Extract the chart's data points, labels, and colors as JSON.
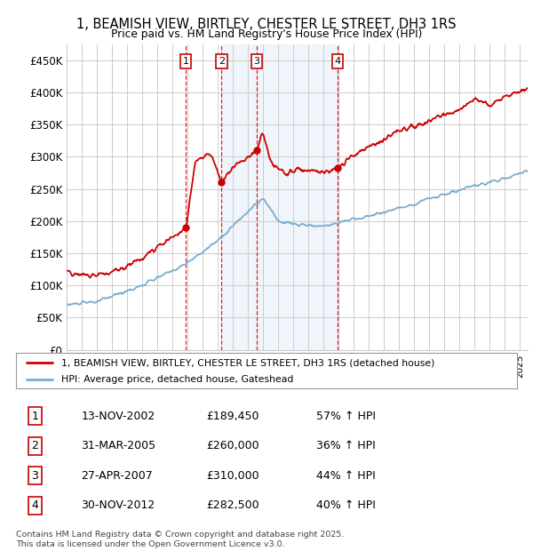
{
  "title": "1, BEAMISH VIEW, BIRTLEY, CHESTER LE STREET, DH3 1RS",
  "subtitle": "Price paid vs. HM Land Registry's House Price Index (HPI)",
  "ylim": [
    0,
    475000
  ],
  "yticks": [
    0,
    50000,
    100000,
    150000,
    200000,
    250000,
    300000,
    350000,
    400000,
    450000
  ],
  "ytick_labels": [
    "£0",
    "£50K",
    "£100K",
    "£150K",
    "£200K",
    "£250K",
    "£300K",
    "£350K",
    "£400K",
    "£450K"
  ],
  "xlim_start": 1995.0,
  "xlim_end": 2025.5,
  "purchase_dates": [
    2002.87,
    2005.25,
    2007.58,
    2012.92
  ],
  "purchase_prices": [
    189450,
    260000,
    310000,
    282500
  ],
  "purchase_labels": [
    "1",
    "2",
    "3",
    "4"
  ],
  "legend_line1": "1, BEAMISH VIEW, BIRTLEY, CHESTER LE STREET, DH3 1RS (detached house)",
  "legend_line2": "HPI: Average price, detached house, Gateshead",
  "table_data": [
    [
      "1",
      "13-NOV-2002",
      "£189,450",
      "57% ↑ HPI"
    ],
    [
      "2",
      "31-MAR-2005",
      "£260,000",
      "36% ↑ HPI"
    ],
    [
      "3",
      "27-APR-2007",
      "£310,000",
      "44% ↑ HPI"
    ],
    [
      "4",
      "30-NOV-2012",
      "£282,500",
      "40% ↑ HPI"
    ]
  ],
  "footer": "Contains HM Land Registry data © Crown copyright and database right 2025.\nThis data is licensed under the Open Government Licence v3.0.",
  "red_color": "#cc0000",
  "blue_color": "#7aadcf",
  "shade_color": "#ddeeff",
  "bg_color": "#ffffff",
  "grid_color": "#cccccc"
}
